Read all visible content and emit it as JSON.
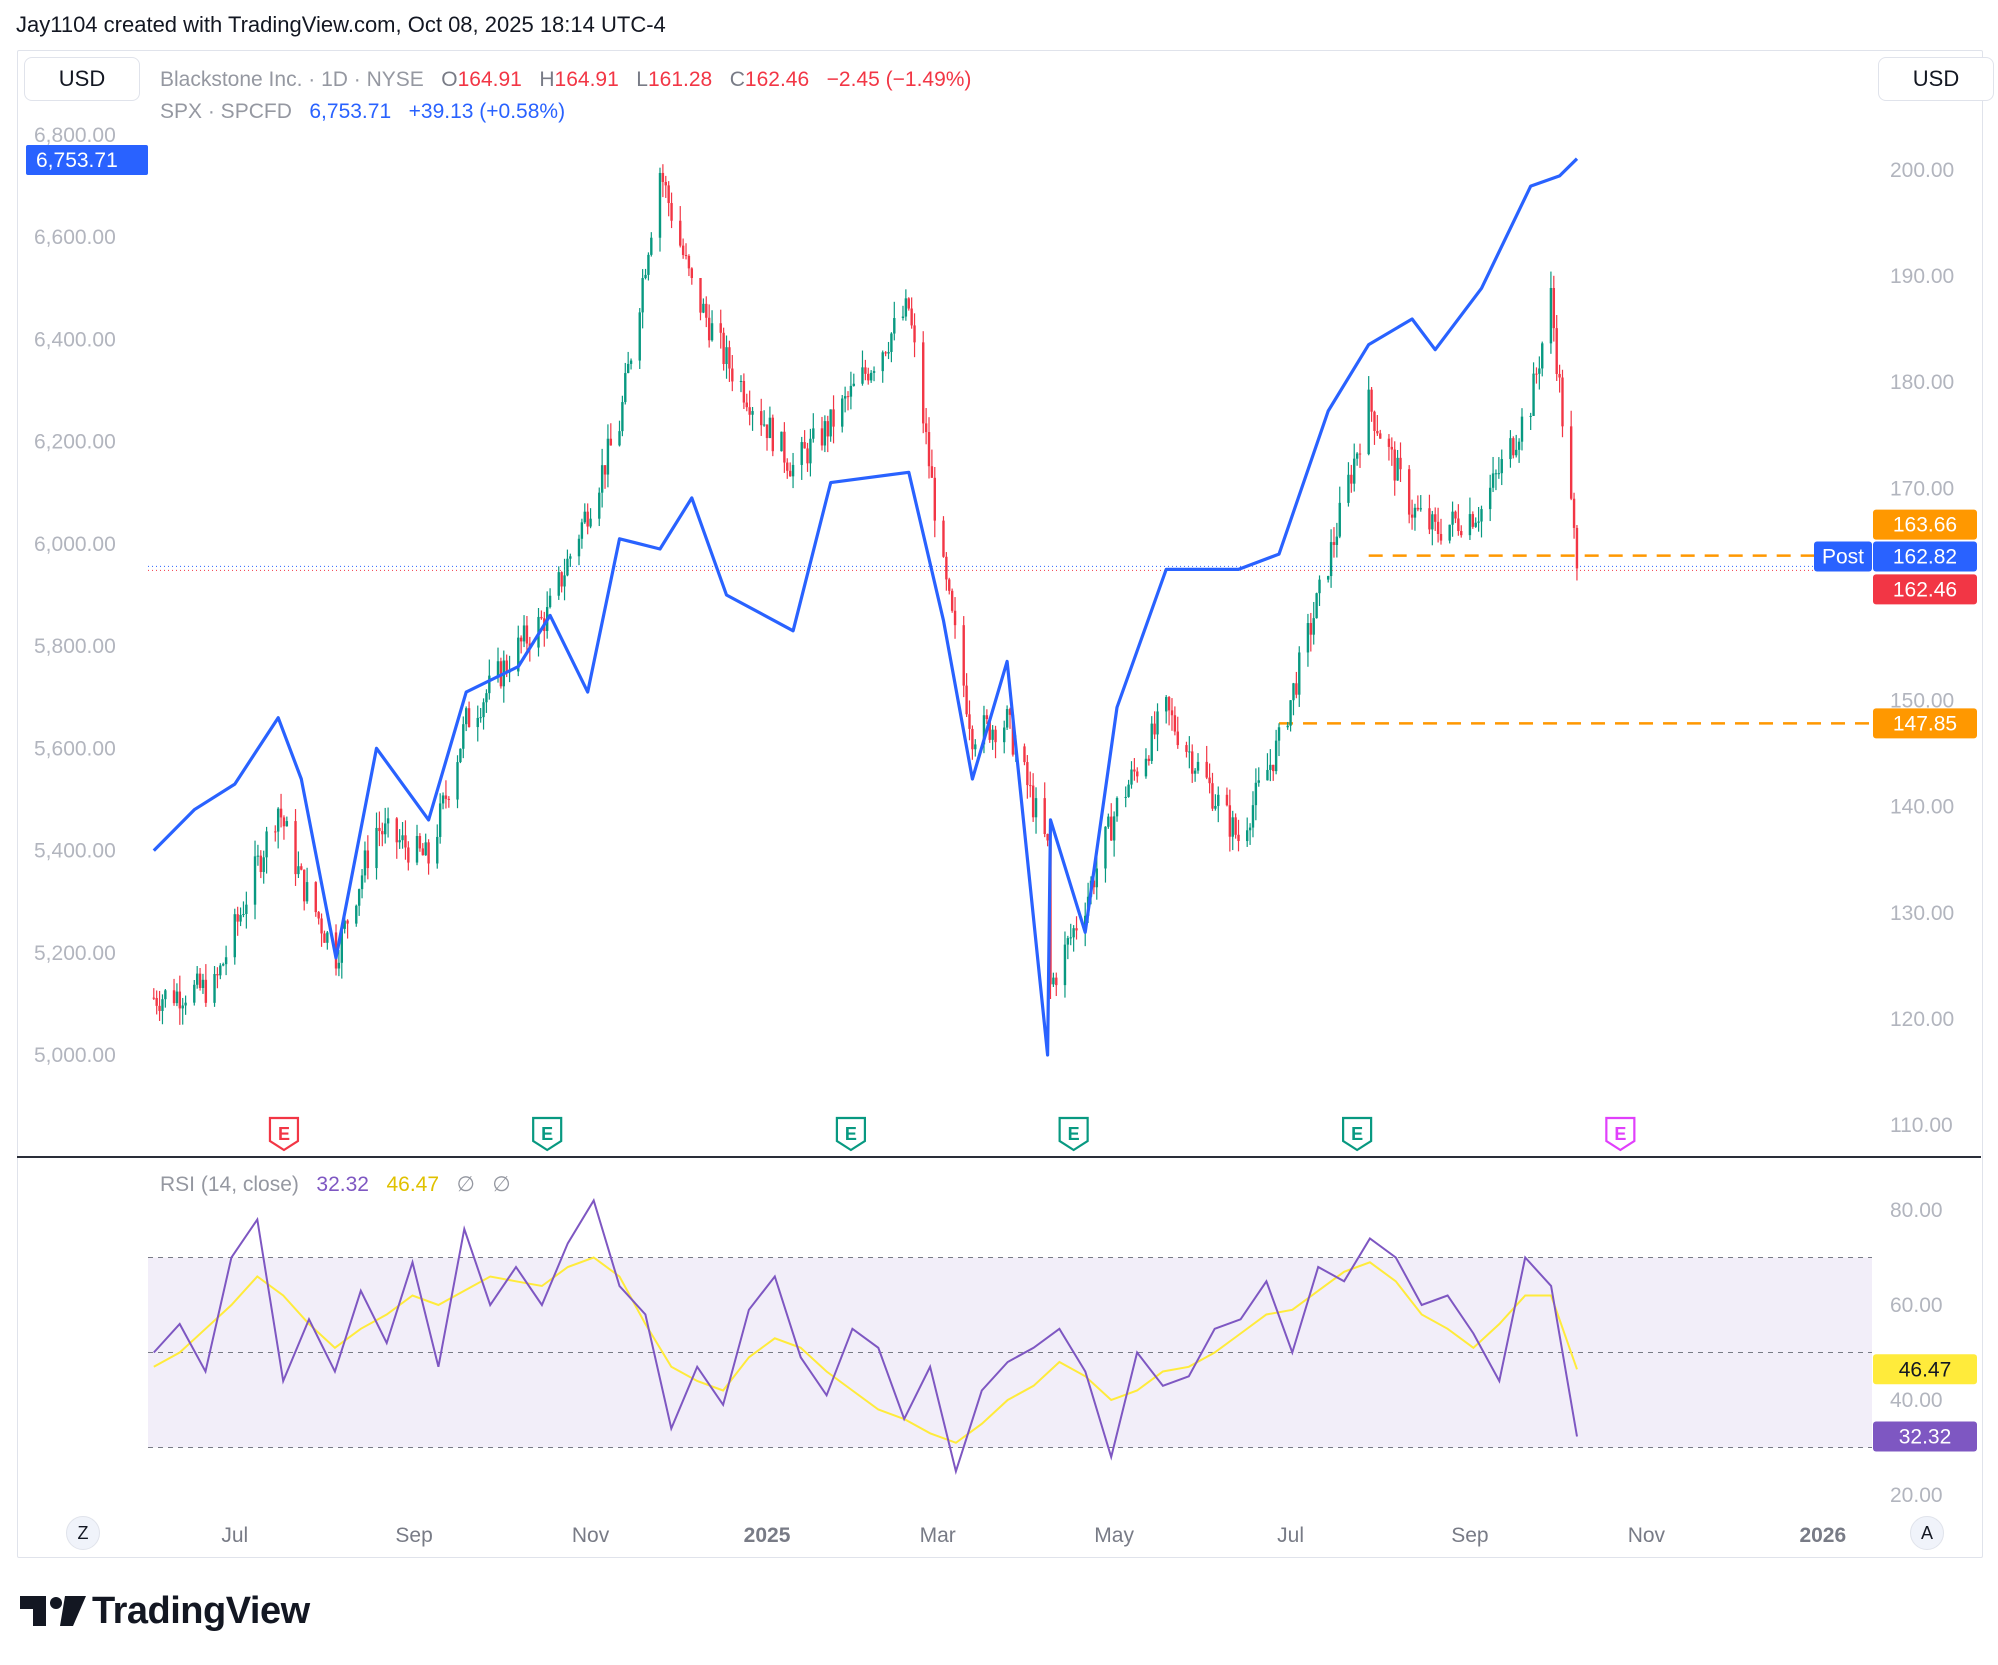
{
  "header": {
    "credit": "Jay1104 created with TradingView.com, Oct 08, 2025 18:14 UTC-4"
  },
  "currency_left": "USD",
  "currency_right": "USD",
  "legend": {
    "row1": {
      "name": "Blackstone Inc. · 1D · NYSE",
      "o_label": "O",
      "o_value": "164.91",
      "h_label": "H",
      "h_value": "164.91",
      "l_label": "L",
      "l_value": "161.28",
      "c_label": "C",
      "c_value": "162.46",
      "change": "−2.45 (−1.49%)"
    },
    "row2": {
      "name": "SPX · SPCFD",
      "value": "6,753.71",
      "change": "+39.13 (+0.58%)"
    }
  },
  "rsi_legend": {
    "name": "RSI (14, close)",
    "rsi": "32.32",
    "ma": "46.47",
    "icons": [
      "∅",
      "∅"
    ]
  },
  "bottom_buttons": {
    "left": "Z",
    "right": "A"
  },
  "logo": {
    "text": "TradingView",
    "icon": "tradingview-logo-icon"
  },
  "colors": {
    "spx": "#2962ff",
    "up": "#089981",
    "down": "#f23645",
    "rsi": "#7e57c2",
    "rsi_ma": "#ffeb3b",
    "level": "#ff9800"
  },
  "chart_data": [
    {
      "type": "line",
      "title": "Blackstone Inc. vs SPX",
      "left_axis": {
        "ticks": [
          "5,000.00",
          "5,200.00",
          "5,400.00",
          "5,600.00",
          "5,800.00",
          "6,000.00",
          "6,200.00",
          "6,400.00",
          "6,600.00",
          "6,800.00"
        ],
        "range": [
          4960,
          6830
        ]
      },
      "right_axis": {
        "ticks": [
          "110.00",
          "120.00",
          "130.00",
          "140.00",
          "150.00",
          "160.00",
          "170.00",
          "180.00",
          "190.00",
          "200.00"
        ],
        "range": [
          110,
          202
        ]
      },
      "x_ticks": [
        "Jul",
        "Sep",
        "Nov",
        "2025",
        "Mar",
        "May",
        "Jul",
        "Sep",
        "Nov",
        "2026"
      ],
      "x_ticks_bold": [
        "2025",
        "2026"
      ],
      "series": [
        {
          "name": "SPX · SPCFD",
          "axis": "left",
          "x": [
            "2024-06-03",
            "2024-06-17",
            "2024-07-01",
            "2024-07-16",
            "2024-07-24",
            "2024-08-05",
            "2024-08-19",
            "2024-09-06",
            "2024-09-19",
            "2024-10-07",
            "2024-10-18",
            "2024-10-31",
            "2024-11-11",
            "2024-11-25",
            "2024-12-06",
            "2024-12-18",
            "2025-01-10",
            "2025-01-23",
            "2025-02-19",
            "2025-03-03",
            "2025-03-13",
            "2025-03-25",
            "2025-04-08",
            "2025-04-09",
            "2025-04-21",
            "2025-05-02",
            "2025-05-19",
            "2025-06-13",
            "2025-06-27",
            "2025-07-14",
            "2025-07-28",
            "2025-08-12",
            "2025-08-20",
            "2025-09-05",
            "2025-09-22",
            "2025-10-02",
            "2025-10-08"
          ],
          "values": [
            5400,
            5480,
            5530,
            5660,
            5540,
            5190,
            5600,
            5460,
            5710,
            5760,
            5860,
            5710,
            6010,
            5990,
            6090,
            5900,
            5830,
            6120,
            6140,
            5850,
            5540,
            5770,
            5000,
            5460,
            5240,
            5680,
            5950,
            5950,
            5980,
            6260,
            6390,
            6440,
            6380,
            6500,
            6700,
            6720,
            6753.71
          ],
          "last_label": "6,753.71"
        },
        {
          "name": "Blackstone Inc. · 1D · NYSE",
          "axis": "right",
          "type": "candlestick",
          "x": [
            "2024-06-03",
            "2024-06-24",
            "2024-07-16",
            "2024-07-24",
            "2024-08-05",
            "2024-08-19",
            "2024-09-06",
            "2024-09-19",
            "2024-10-07",
            "2024-10-17",
            "2024-10-31",
            "2024-11-11",
            "2024-11-25",
            "2024-12-06",
            "2024-12-18",
            "2025-01-10",
            "2025-01-23",
            "2025-02-19",
            "2025-03-03",
            "2025-03-13",
            "2025-03-25",
            "2025-04-08",
            "2025-04-09",
            "2025-04-21",
            "2025-05-02",
            "2025-05-19",
            "2025-06-13",
            "2025-06-27",
            "2025-07-14",
            "2025-07-28",
            "2025-08-12",
            "2025-08-20",
            "2025-09-05",
            "2025-09-22",
            "2025-09-29",
            "2025-10-08"
          ],
          "values": [
            122,
            123,
            140,
            133,
            126,
            138,
            135,
            148,
            155,
            158,
            168,
            176,
            200,
            189,
            182,
            172,
            176,
            187,
            162,
            147,
            148,
            136,
            123,
            131,
            140,
            149,
            137,
            146,
            163,
            178,
            168,
            166,
            168,
            178,
            188,
            162.46
          ]
        }
      ],
      "price_tags": [
        {
          "label": "163.66",
          "kind": "level"
        },
        {
          "label": "Post",
          "value": "162.82",
          "kind": "post"
        },
        {
          "label": "162.46",
          "kind": "last"
        },
        {
          "label": "147.85",
          "kind": "level"
        }
      ],
      "levels": [
        163.66,
        147.85
      ],
      "earnings_markers": [
        "E",
        "E",
        "E",
        "E",
        "E",
        "E"
      ]
    },
    {
      "type": "line",
      "title": "RSI (14, close)",
      "y_ticks": [
        "20.00",
        "40.00",
        "60.00",
        "80.00"
      ],
      "bands": [
        30,
        50,
        70
      ],
      "series": [
        {
          "name": "RSI",
          "values": [
            50,
            56,
            46,
            70,
            78,
            44,
            57,
            46,
            63,
            52,
            69,
            47,
            76,
            60,
            68,
            60,
            73,
            82,
            64,
            58,
            34,
            47,
            39,
            59,
            66,
            49,
            41,
            55,
            51,
            36,
            47,
            25,
            42,
            48,
            51,
            55,
            46,
            28,
            50,
            43,
            45,
            55,
            57,
            65,
            50,
            68,
            65,
            74,
            70,
            60,
            62,
            54,
            44,
            70,
            64,
            32.32
          ]
        },
        {
          "name": "RSI MA",
          "values": [
            47,
            50,
            55,
            60,
            66,
            62,
            56,
            51,
            55,
            58,
            62,
            60,
            63,
            66,
            65,
            64,
            68,
            70,
            66,
            56,
            47,
            44,
            42,
            49,
            53,
            51,
            46,
            42,
            38,
            36,
            33,
            31,
            35,
            40,
            43,
            48,
            45,
            40,
            42,
            46,
            47,
            50,
            54,
            58,
            59,
            63,
            67,
            69,
            65,
            58,
            55,
            51,
            56,
            62,
            62,
            46.47
          ]
        }
      ],
      "last_rsi_label": "32.32",
      "last_ma_label": "46.47"
    }
  ]
}
